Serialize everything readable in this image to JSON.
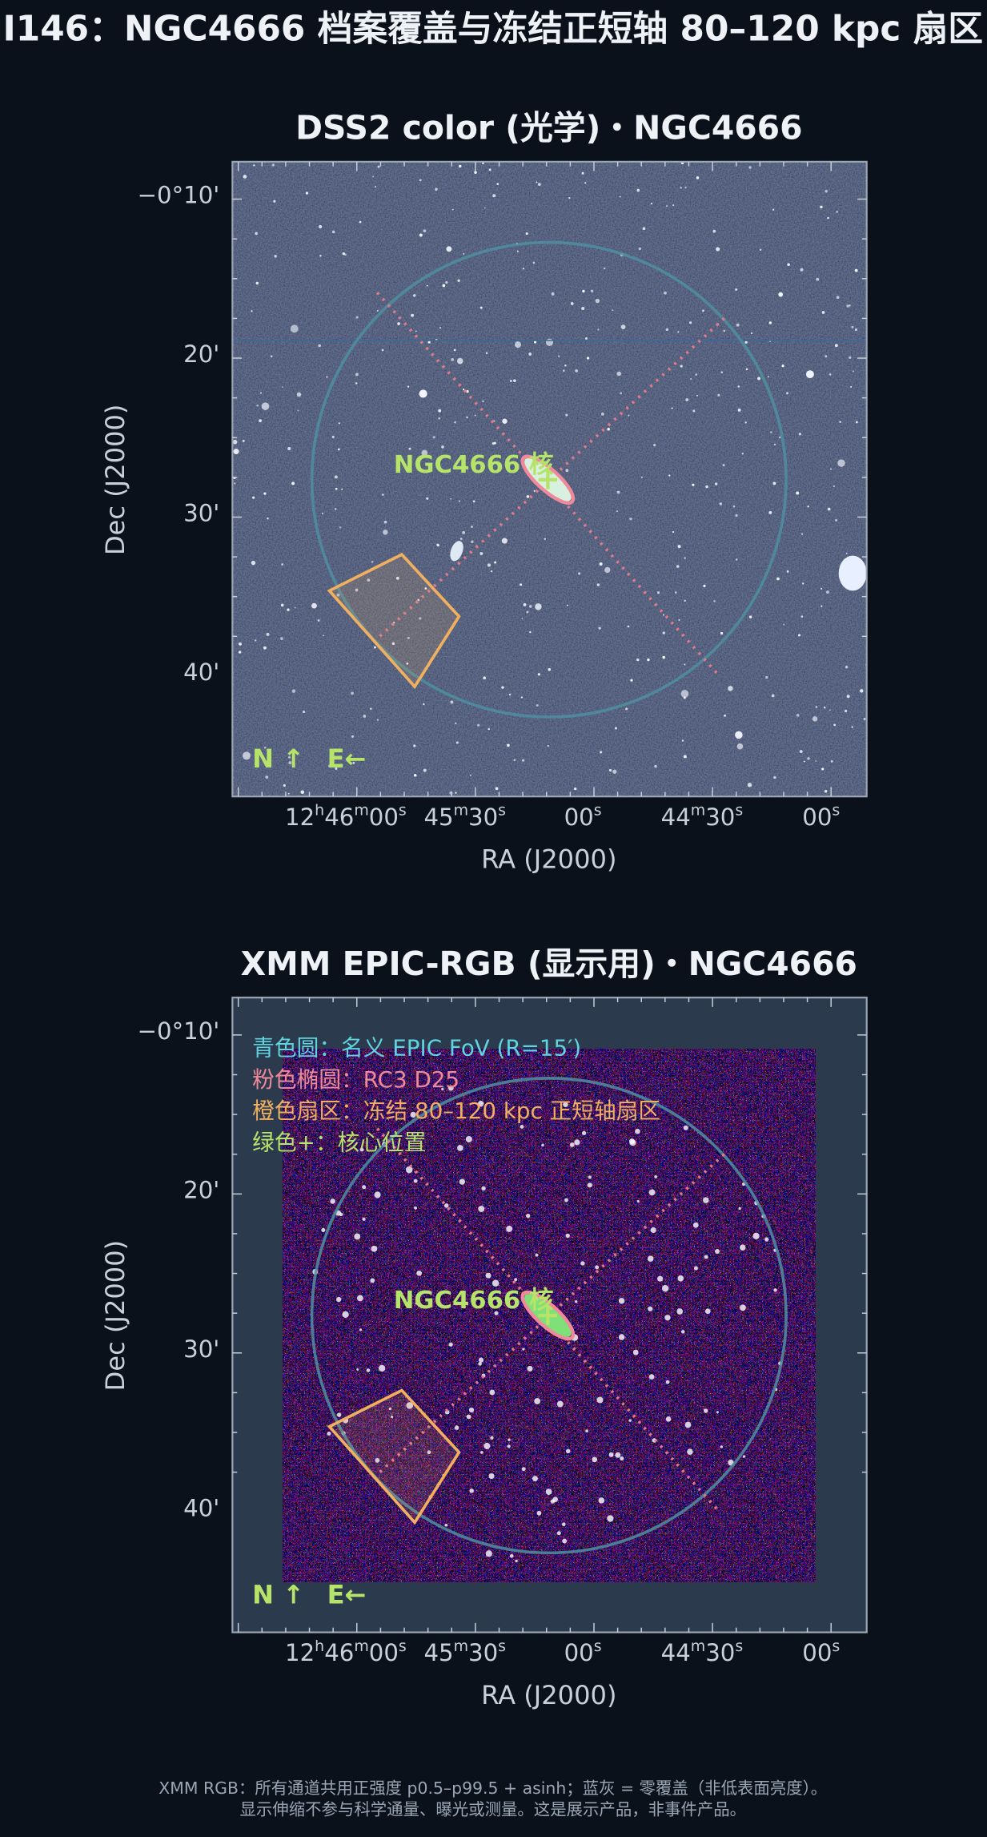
{
  "title": "I146：NGC4666 档案覆盖与冻结正短轴 80–120 kpc 扇区",
  "panels": [
    {
      "title": "DSS2 color (光学)・NGC4666",
      "y_label": "Dec (J2000)",
      "x_label": "RA (J2000)",
      "y_ticks": [
        "−0°10'",
        "20'",
        "30'",
        "40'"
      ],
      "x_ticks": [
        [
          "12",
          "h",
          "46",
          "m",
          "00",
          "s"
        ],
        [
          "45",
          "m",
          "30",
          "s"
        ],
        [
          "00",
          "s"
        ],
        [
          "44",
          "m",
          "30",
          "s"
        ],
        [
          "00",
          "s"
        ]
      ],
      "galaxy_label": "NGC4666 核",
      "north": "N ↑",
      "east": "E←"
    },
    {
      "title": "XMM EPIC-RGB (显示用)・NGC4666",
      "y_label": "Dec (J2000)",
      "x_label": "RA (J2000)",
      "y_ticks": [
        "−0°10'",
        "20'",
        "30'",
        "40'"
      ],
      "x_ticks": [
        [
          "12",
          "h",
          "46",
          "m",
          "00",
          "s"
        ],
        [
          "45",
          "m",
          "30",
          "s"
        ],
        [
          "00",
          "s"
        ],
        [
          "44",
          "m",
          "30",
          "s"
        ],
        [
          "00",
          "s"
        ]
      ],
      "galaxy_label": "NGC4666 核",
      "north": "N ↑",
      "east": "E←",
      "legend": [
        "青色圆：名义 EPIC FoV (R=15′)",
        "粉色椭圆：RC3 D25",
        "橙色扇区：冻结 80–120 kpc 正短轴扇区",
        "绿色+：核心位置"
      ]
    }
  ],
  "footnote": [
    "XMM RGB：所有通道共用正强度 p0.5–p99.5 + asinh；蓝灰 = 零覆盖（非低表面亮度）。",
    "显示伸缩不参与科学通量、曝光或测量。这是展示产品，非事件产品。"
  ]
}
